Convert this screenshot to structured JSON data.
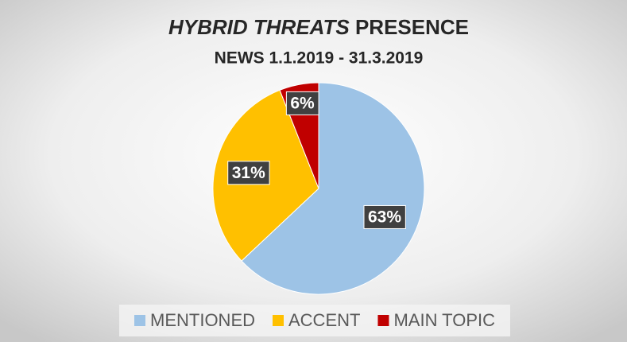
{
  "chart_data": {
    "type": "pie",
    "title": "HYBRID THREATS PRESENCE",
    "subtitle": "NEWS 1.1.2019 - 31.3.2019",
    "categories": [
      "MENTIONED",
      "ACCENT",
      "MAIN TOPIC"
    ],
    "values": [
      63,
      31,
      6
    ],
    "value_labels": [
      "63%",
      "31%",
      "6%"
    ],
    "colors": [
      "#9dc3e6",
      "#ffc000",
      "#c00000"
    ],
    "legend": "bottom"
  }
}
